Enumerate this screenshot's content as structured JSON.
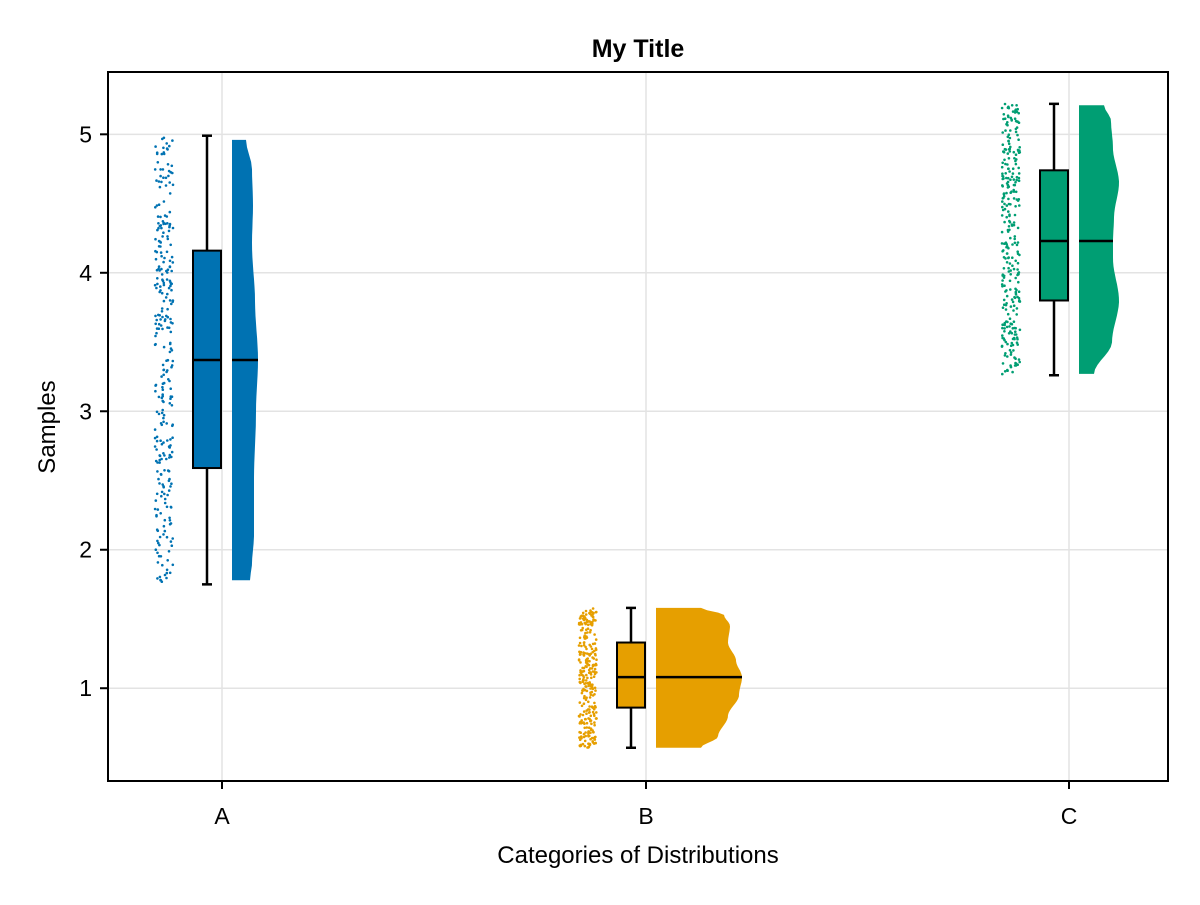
{
  "chart_data": {
    "type": "raincloud",
    "title": "My Title",
    "xlabel": "Categories of Distributions",
    "ylabel": "Samples",
    "categories": [
      "A",
      "B",
      "C"
    ],
    "yticks": [
      "1",
      "2",
      "3",
      "4",
      "5"
    ],
    "ylim": [
      0.33,
      5.45
    ],
    "grid": true,
    "series": [
      {
        "category": "A",
        "color": "#0072B2",
        "min": 1.75,
        "q1": 2.59,
        "median": 3.37,
        "q3": 4.16,
        "max": 4.99,
        "n_points": 300,
        "density": [
          [
            1.78,
            0.18
          ],
          [
            1.9,
            0.2
          ],
          [
            2.1,
            0.22
          ],
          [
            2.5,
            0.22
          ],
          [
            3.0,
            0.24
          ],
          [
            3.37,
            0.26
          ],
          [
            3.8,
            0.23
          ],
          [
            4.2,
            0.2
          ],
          [
            4.5,
            0.21
          ],
          [
            4.75,
            0.2
          ],
          [
            4.96,
            0.14
          ]
        ]
      },
      {
        "category": "B",
        "color": "#E69F00",
        "min": 0.57,
        "q1": 0.86,
        "median": 1.08,
        "q3": 1.33,
        "max": 1.58,
        "n_points": 300,
        "density": [
          [
            0.57,
            0.45
          ],
          [
            0.65,
            0.62
          ],
          [
            0.8,
            0.72
          ],
          [
            0.95,
            0.83
          ],
          [
            1.08,
            0.86
          ],
          [
            1.2,
            0.8
          ],
          [
            1.33,
            0.72
          ],
          [
            1.45,
            0.74
          ],
          [
            1.53,
            0.68
          ],
          [
            1.58,
            0.45
          ]
        ]
      },
      {
        "category": "C",
        "color": "#009E73",
        "min": 3.26,
        "q1": 3.8,
        "median": 4.23,
        "q3": 4.74,
        "max": 5.22,
        "n_points": 300,
        "density": [
          [
            3.27,
            0.15
          ],
          [
            3.5,
            0.33
          ],
          [
            3.8,
            0.4
          ],
          [
            4.1,
            0.34
          ],
          [
            4.23,
            0.34
          ],
          [
            4.4,
            0.35
          ],
          [
            4.65,
            0.4
          ],
          [
            4.9,
            0.34
          ],
          [
            5.1,
            0.32
          ],
          [
            5.21,
            0.25
          ]
        ]
      }
    ]
  }
}
